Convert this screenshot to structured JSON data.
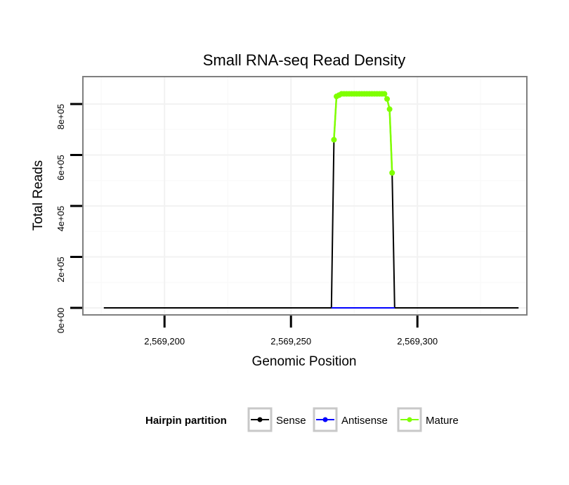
{
  "chart_data": {
    "type": "line",
    "title": "Small RNA-seq Read Density",
    "xlabel": "Genomic Position",
    "ylabel": "Total Reads",
    "xlim": [
      2569168,
      2569343
    ],
    "ylim": [
      -25000,
      905000
    ],
    "x_ticks": [
      {
        "value": 2569200,
        "label": "2,569,200"
      },
      {
        "value": 2569250,
        "label": "2,569,250"
      },
      {
        "value": 2569300,
        "label": "2,569,300"
      }
    ],
    "y_ticks": [
      {
        "value": 0,
        "label": "0e+00"
      },
      {
        "value": 200000,
        "label": "2e+05"
      },
      {
        "value": 400000,
        "label": "4e+05"
      },
      {
        "value": 600000,
        "label": "6e+05"
      },
      {
        "value": 800000,
        "label": "8e+05"
      }
    ],
    "grid": true,
    "legend": {
      "title": "Hairpin partition",
      "placement": "bottom",
      "entries": [
        {
          "label": "Sense",
          "color": "#000000"
        },
        {
          "label": "Antisense",
          "color": "#0000ff"
        },
        {
          "label": "Mature",
          "color": "#7fff00"
        }
      ]
    },
    "series": [
      {
        "name": "Sense",
        "color": "#000000",
        "points": [
          [
            2569176,
            0
          ],
          [
            2569266,
            0
          ],
          [
            2569267,
            660000
          ],
          [
            2569268,
            830000
          ],
          [
            2569269,
            835000
          ],
          [
            2569270,
            840000
          ],
          [
            2569287,
            840000
          ],
          [
            2569288,
            820000
          ],
          [
            2569289,
            780000
          ],
          [
            2569290,
            530000
          ],
          [
            2569291,
            0
          ],
          [
            2569340,
            0
          ]
        ]
      },
      {
        "name": "Antisense",
        "color": "#0000ff",
        "points": [
          [
            2569266,
            0
          ],
          [
            2569291,
            0
          ]
        ]
      },
      {
        "name": "Mature",
        "color": "#7fff00",
        "points": [
          [
            2569267,
            660000
          ],
          [
            2569268,
            830000
          ],
          [
            2569269,
            835000
          ],
          [
            2569270,
            840000
          ],
          [
            2569271,
            840000
          ],
          [
            2569272,
            840000
          ],
          [
            2569273,
            840000
          ],
          [
            2569274,
            840000
          ],
          [
            2569275,
            840000
          ],
          [
            2569276,
            840000
          ],
          [
            2569277,
            840000
          ],
          [
            2569278,
            840000
          ],
          [
            2569279,
            840000
          ],
          [
            2569280,
            840000
          ],
          [
            2569281,
            840000
          ],
          [
            2569282,
            840000
          ],
          [
            2569283,
            840000
          ],
          [
            2569284,
            840000
          ],
          [
            2569285,
            840000
          ],
          [
            2569286,
            840000
          ],
          [
            2569287,
            840000
          ],
          [
            2569288,
            820000
          ],
          [
            2569289,
            780000
          ],
          [
            2569290,
            530000
          ]
        ]
      }
    ]
  }
}
